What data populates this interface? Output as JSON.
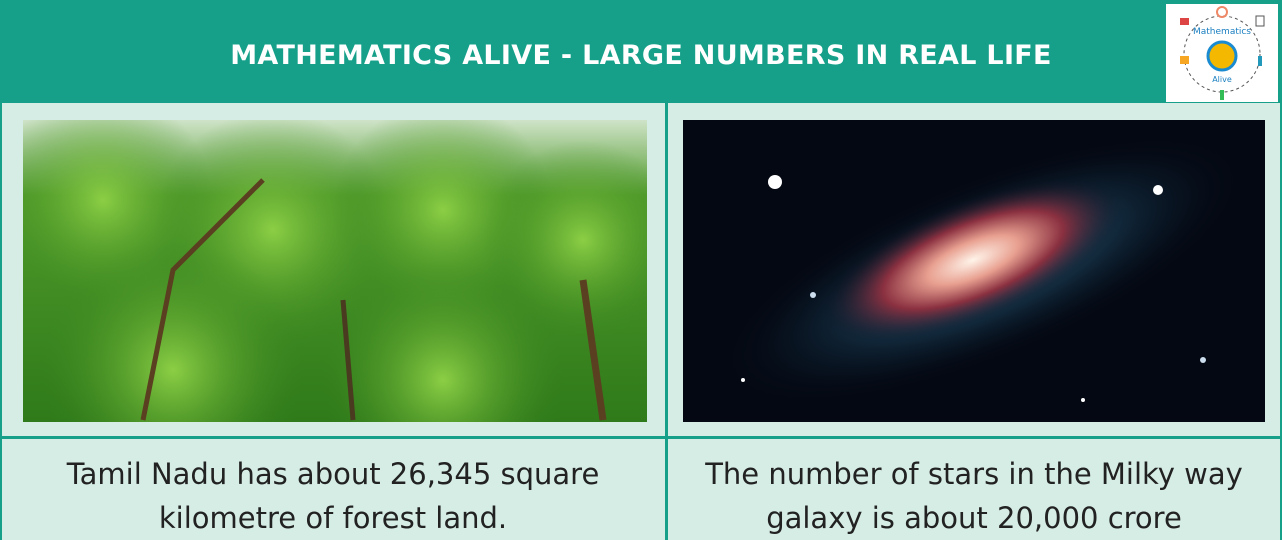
{
  "header": {
    "title": "MATHEMATICS ALIVE - LARGE NUMBERS IN REAL LIFE",
    "logo": {
      "top": "Mathematics",
      "bottom": "Alive"
    }
  },
  "table": {
    "cells": [
      {
        "image": "forest",
        "caption": [
          "Tamil Nadu has about 26,345 square",
          "kilometre of forest land."
        ]
      },
      {
        "image": "galaxy",
        "caption": [
          "The number of stars in the Milky way",
          "galaxy is about 20,000 crore"
        ]
      }
    ]
  }
}
